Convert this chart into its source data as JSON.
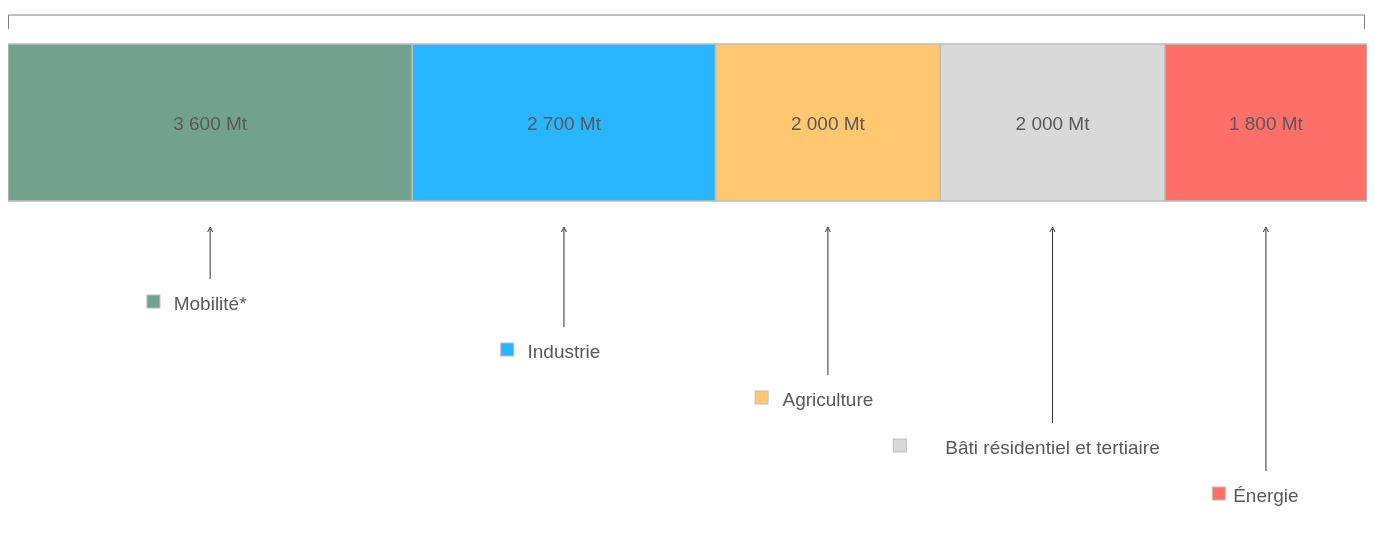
{
  "chart_data": {
    "type": "bar",
    "orientation": "horizontal",
    "stacked": true,
    "legend": "bottom",
    "categories": [
      null
    ],
    "series": [
      {
        "name": "Mobilité*",
        "color": "#72a28e",
        "values": [
          3600
        ],
        "value_labels": [
          "3 600 Mt"
        ]
      },
      {
        "name": "Industrie",
        "color": "#29b5ff",
        "values": [
          2700
        ],
        "value_labels": [
          "2 700 Mt"
        ]
      },
      {
        "name": "Agriculture",
        "color": "#ffc870",
        "values": [
          2000
        ],
        "value_labels": [
          "2 000 Mt"
        ]
      },
      {
        "name": "Bâti résidentiel et tertiaire",
        "color": "#d9d9d9",
        "values": [
          2000
        ],
        "value_labels": [
          "2 000 Mt"
        ]
      },
      {
        "name": "Énergie",
        "color": "#ff6f69",
        "values": [
          1800
        ],
        "value_labels": [
          "1 800 Mt"
        ]
      }
    ]
  }
}
